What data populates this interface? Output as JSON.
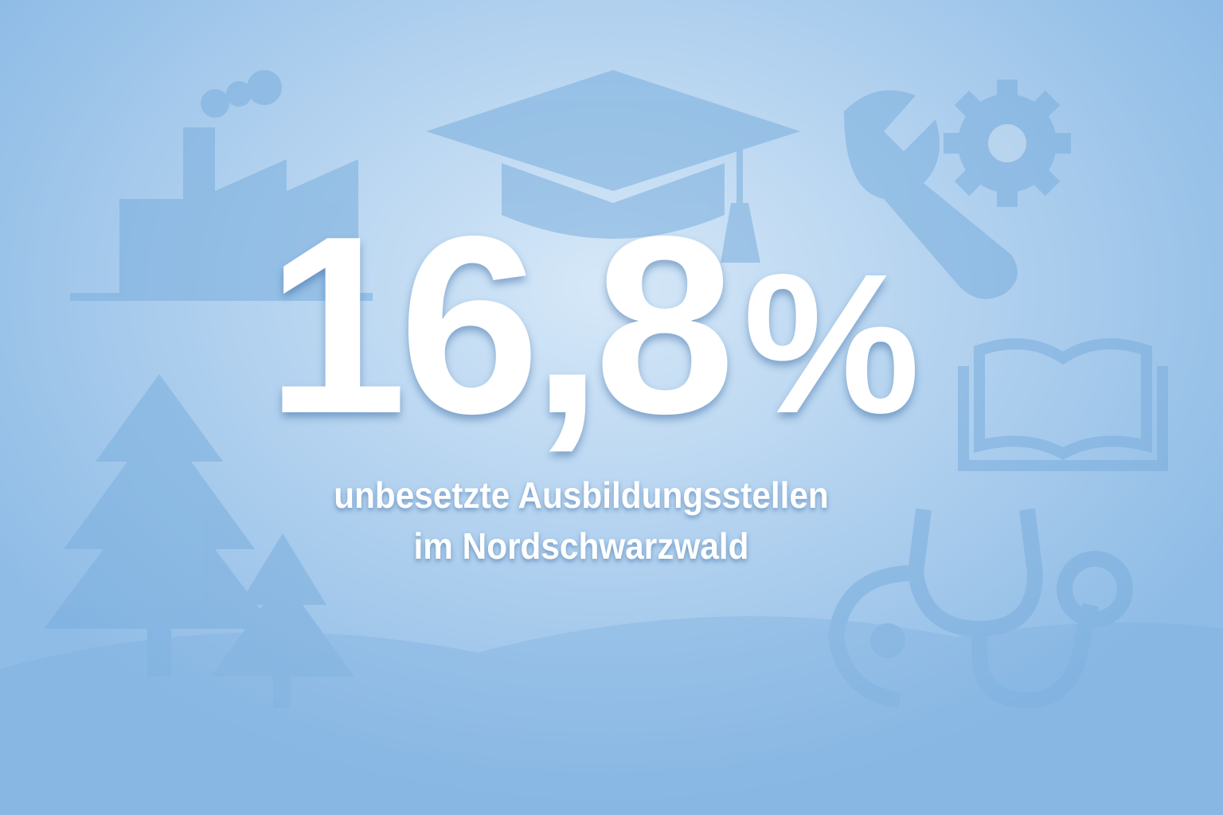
{
  "headline": {
    "value": "16,8",
    "unit": "%"
  },
  "subtitle": {
    "line1": "unbesetzte Ausbildungsstellen",
    "line2": "im Nordschwarzwald"
  },
  "icons": [
    "factory-icon",
    "graduation-cap-icon",
    "wrench-icon",
    "gear-icon",
    "book-icon",
    "stethoscope-icon",
    "fir-tree-icon"
  ],
  "colors": {
    "background": "#b6d4f0",
    "icon": "#7aaedd",
    "text": "#ffffff"
  }
}
